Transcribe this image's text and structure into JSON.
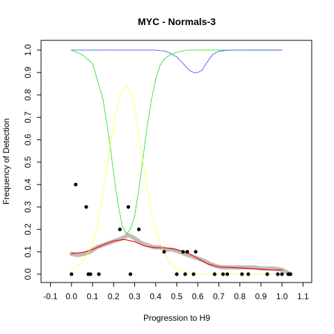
{
  "chart_data": {
    "type": "scatter",
    "title": "MYC - Normals-3",
    "xlabel": "Progression to H9",
    "ylabel": "Frequency of Detection",
    "xlim": [
      -0.1,
      1.1
    ],
    "ylim": [
      0.0,
      1.0
    ],
    "x_ticks": [
      "-0.1",
      "0.0",
      "0.1",
      "0.2",
      "0.3",
      "0.4",
      "0.5",
      "0.6",
      "0.7",
      "0.8",
      "0.9",
      "1.0",
      "1.1"
    ],
    "y_ticks": [
      "0.0",
      "0.1",
      "0.2",
      "0.3",
      "0.4",
      "0.5",
      "0.6",
      "0.7",
      "0.8",
      "0.9",
      "1.0"
    ],
    "grid": false,
    "colors": {
      "points": "#000000",
      "smooth_gray": "#bebebe",
      "fit_red": "#ff0000",
      "curve_green": "#00dd00",
      "curve_yellow": "#ffff33",
      "curve_blue": "#3333ff"
    },
    "points": [
      {
        "x": 0.0,
        "y": 0.0
      },
      {
        "x": 0.02,
        "y": 0.4
      },
      {
        "x": 0.07,
        "y": 0.3
      },
      {
        "x": 0.08,
        "y": 0.0
      },
      {
        "x": 0.09,
        "y": 0.0
      },
      {
        "x": 0.13,
        "y": 0.0
      },
      {
        "x": 0.23,
        "y": 0.2
      },
      {
        "x": 0.27,
        "y": 0.3
      },
      {
        "x": 0.28,
        "y": 0.0
      },
      {
        "x": 0.32,
        "y": 0.2
      },
      {
        "x": 0.44,
        "y": 0.1
      },
      {
        "x": 0.5,
        "y": 0.0
      },
      {
        "x": 0.53,
        "y": 0.1
      },
      {
        "x": 0.54,
        "y": 0.0
      },
      {
        "x": 0.55,
        "y": 0.1
      },
      {
        "x": 0.58,
        "y": 0.0
      },
      {
        "x": 0.59,
        "y": 0.1
      },
      {
        "x": 0.68,
        "y": 0.0
      },
      {
        "x": 0.72,
        "y": 0.0
      },
      {
        "x": 0.74,
        "y": 0.0
      },
      {
        "x": 0.81,
        "y": 0.0
      },
      {
        "x": 0.84,
        "y": 0.0
      },
      {
        "x": 0.93,
        "y": 0.0
      },
      {
        "x": 0.98,
        "y": 0.0
      },
      {
        "x": 1.0,
        "y": 0.0
      },
      {
        "x": 1.03,
        "y": 0.0
      },
      {
        "x": 1.04,
        "y": 0.0
      }
    ],
    "series": [
      {
        "kind": "smooth-band",
        "color": "smooth_gray",
        "x": [
          0.0,
          0.03,
          0.06,
          0.09,
          0.12,
          0.15,
          0.18,
          0.21,
          0.24,
          0.27,
          0.3,
          0.33,
          0.36,
          0.39,
          0.42,
          0.45,
          0.48,
          0.51,
          0.54,
          0.57,
          0.6,
          0.63,
          0.66,
          0.69,
          0.72,
          0.75,
          0.78,
          0.81,
          0.84,
          0.87,
          0.9,
          0.93,
          0.96,
          1.0,
          1.04
        ],
        "y": [
          0.09,
          0.085,
          0.09,
          0.1,
          0.12,
          0.13,
          0.14,
          0.15,
          0.16,
          0.175,
          0.16,
          0.14,
          0.13,
          0.12,
          0.12,
          0.11,
          0.11,
          0.1,
          0.09,
          0.08,
          0.07,
          0.06,
          0.045,
          0.035,
          0.03,
          0.03,
          0.03,
          0.03,
          0.03,
          0.03,
          0.025,
          0.025,
          0.025,
          0.02,
          0.0
        ]
      },
      {
        "kind": "line",
        "color": "fit_red",
        "x": [
          0.0,
          0.05,
          0.1,
          0.15,
          0.2,
          0.25,
          0.3,
          0.35,
          0.4,
          0.45,
          0.5,
          0.55,
          0.6,
          0.65,
          0.7,
          0.75,
          0.8,
          0.85,
          0.9,
          0.95,
          1.0
        ],
        "y": [
          0.093,
          0.096,
          0.11,
          0.13,
          0.148,
          0.155,
          0.145,
          0.125,
          0.118,
          0.117,
          0.11,
          0.095,
          0.07,
          0.045,
          0.032,
          0.03,
          0.028,
          0.025,
          0.022,
          0.019,
          0.018
        ]
      },
      {
        "kind": "dotted",
        "color": "curve_green",
        "x": [
          0.0,
          0.05,
          0.1,
          0.15,
          0.18,
          0.2,
          0.22,
          0.24,
          0.26,
          0.28,
          0.3,
          0.32,
          0.34,
          0.36,
          0.38,
          0.4,
          0.42,
          0.44,
          0.47,
          0.5,
          0.55,
          0.6,
          0.65,
          0.7,
          0.8,
          0.9,
          1.0
        ],
        "y": [
          1.0,
          0.98,
          0.94,
          0.78,
          0.6,
          0.45,
          0.32,
          0.22,
          0.18,
          0.2,
          0.26,
          0.38,
          0.52,
          0.66,
          0.78,
          0.87,
          0.93,
          0.96,
          0.98,
          0.99,
          1.0,
          1.0,
          1.0,
          1.0,
          1.0,
          1.0,
          1.0
        ]
      },
      {
        "kind": "dotted",
        "color": "curve_yellow",
        "x": [
          0.0,
          0.05,
          0.1,
          0.14,
          0.18,
          0.21,
          0.24,
          0.26,
          0.28,
          0.3,
          0.32,
          0.35,
          0.38,
          0.42,
          0.46,
          0.5,
          0.55,
          0.6,
          0.7,
          0.8,
          1.0
        ],
        "y": [
          0.02,
          0.05,
          0.13,
          0.3,
          0.55,
          0.72,
          0.82,
          0.84,
          0.82,
          0.74,
          0.62,
          0.44,
          0.28,
          0.14,
          0.06,
          0.02,
          0.01,
          0.0,
          0.0,
          0.0,
          0.0
        ]
      },
      {
        "kind": "dotted",
        "color": "curve_blue",
        "x": [
          0.0,
          0.1,
          0.2,
          0.3,
          0.4,
          0.45,
          0.5,
          0.53,
          0.56,
          0.58,
          0.6,
          0.62,
          0.64,
          0.67,
          0.7,
          0.75,
          0.8,
          0.9,
          1.0
        ],
        "y": [
          1.0,
          1.0,
          1.0,
          1.0,
          1.0,
          0.995,
          0.97,
          0.94,
          0.91,
          0.9,
          0.9,
          0.91,
          0.94,
          0.98,
          0.995,
          1.0,
          1.0,
          1.0,
          1.0
        ]
      }
    ]
  }
}
